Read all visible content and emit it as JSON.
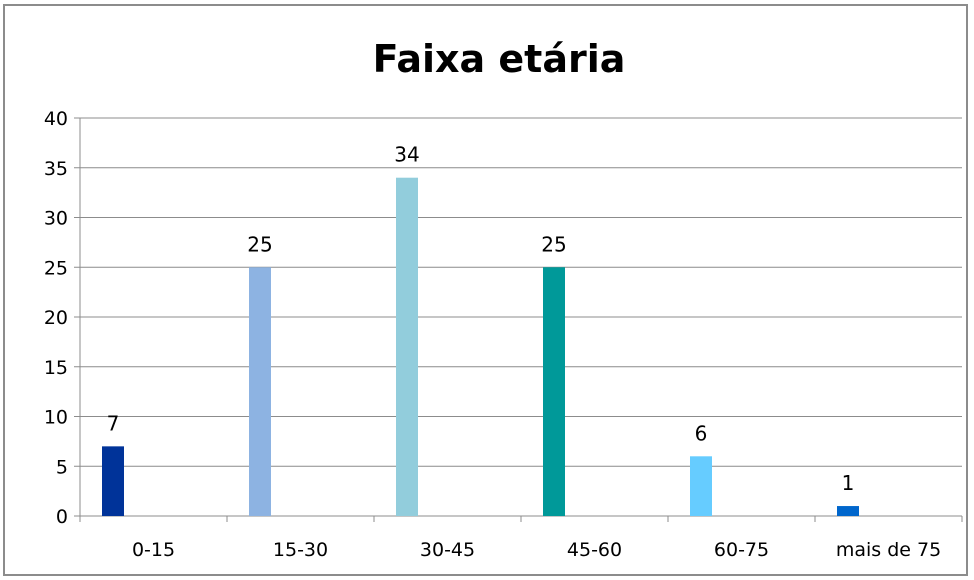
{
  "chart_data": {
    "type": "bar",
    "title": "Faixa etária",
    "xlabel": "",
    "ylabel": "",
    "categories": [
      "0-15",
      "15-30",
      "30-45",
      "45-60",
      "60-75",
      "mais de 75"
    ],
    "values": [
      7,
      25,
      34,
      25,
      6,
      1
    ],
    "data_labels": [
      "7",
      "25",
      "34",
      "25",
      "6",
      "1"
    ],
    "colors": [
      "#003399",
      "#8db3e2",
      "#92cddc",
      "#009999",
      "#66ccff",
      "#0066cc"
    ],
    "ylim": [
      0,
      40
    ],
    "yticks": [
      "0",
      "5",
      "10",
      "15",
      "20",
      "25",
      "30",
      "35",
      "40"
    ],
    "grid": true,
    "legend": "none"
  }
}
